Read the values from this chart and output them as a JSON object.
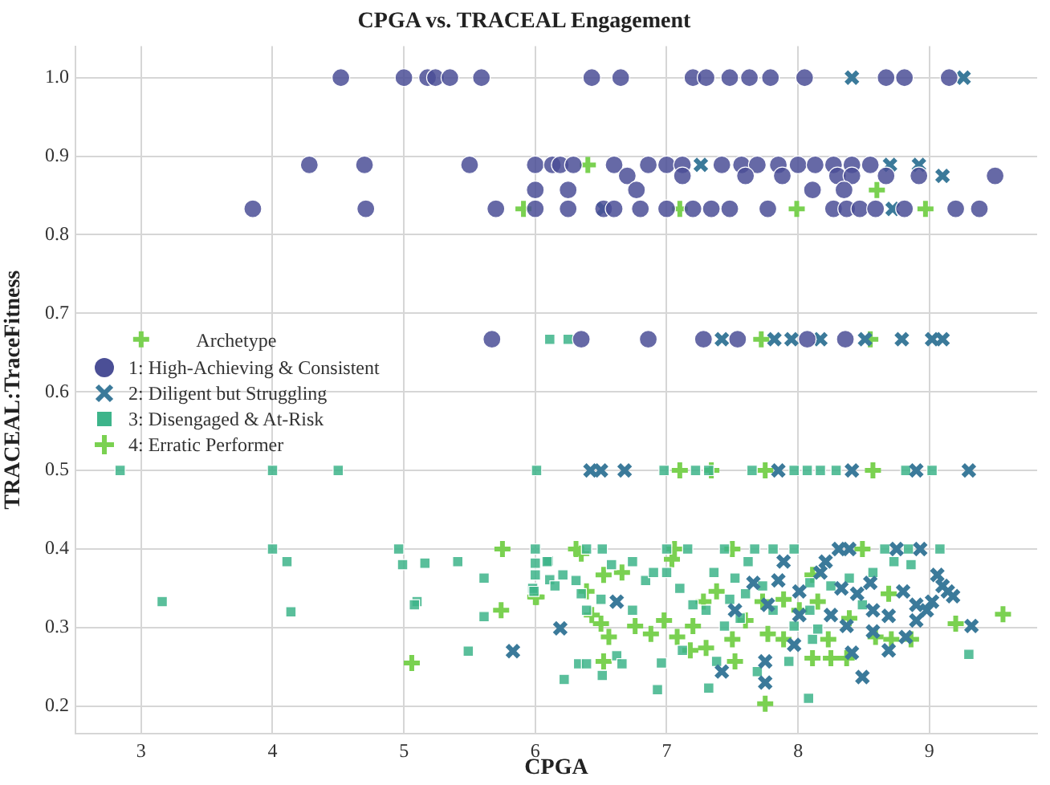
{
  "chart_data": {
    "type": "scatter",
    "title": "CPGA vs. TRACEAL Engagement",
    "xlabel": "CPGA",
    "ylabel": "TRACEAL:TraceFitness",
    "legend_title": "Archetype",
    "legend": "left",
    "grid": true,
    "xlim": [
      2.5,
      9.82
    ],
    "xticks": [
      3,
      4,
      5,
      6,
      7,
      8,
      9
    ],
    "ylim": [
      0.165,
      1.04
    ],
    "yticks": [
      {
        "value": 0.2,
        "label": "0.2"
      },
      {
        "value": 0.3,
        "label": "0.3"
      },
      {
        "value": 0.4,
        "label": "0.4"
      },
      {
        "value": 0.5,
        "label": "0.5"
      },
      {
        "value": 0.6,
        "label": "0.6"
      },
      {
        "value": 0.7,
        "label": "0.7"
      },
      {
        "value": 0.8,
        "label": "0.8"
      },
      {
        "value": 0.9,
        "label": "0.9"
      },
      {
        "value": 1.0,
        "label": "1.0"
      }
    ],
    "series": [
      {
        "name": "1: High-Achieving & Consistent",
        "color": "#4b4f96",
        "marker": "circle",
        "x": [
          4.52,
          5.0,
          5.18,
          5.24,
          5.35,
          5.59,
          6.43,
          6.65,
          7.2,
          7.3,
          7.48,
          7.63,
          7.79,
          8.05,
          8.67,
          8.81,
          9.15,
          4.28,
          4.7,
          5.5,
          6.0,
          6.13,
          6.19,
          6.29,
          6.6,
          6.86,
          7.0,
          7.12,
          7.42,
          7.57,
          7.69,
          7.85,
          8.0,
          8.13,
          8.27,
          8.41,
          8.55,
          6.7,
          7.12,
          7.6,
          7.88,
          8.3,
          8.41,
          8.67,
          8.92,
          9.5,
          6.0,
          6.25,
          6.77,
          8.11,
          8.35,
          3.85,
          4.71,
          5.7,
          6.0,
          6.25,
          6.52,
          6.6,
          6.8,
          7.0,
          7.2,
          7.34,
          7.48,
          7.77,
          8.27,
          8.37,
          8.47,
          8.59,
          8.81,
          9.2,
          9.38,
          5.67,
          6.35,
          6.86,
          7.28,
          7.54,
          8.07,
          8.36
        ],
        "values": [
          1.0,
          1.0,
          1.0,
          1.0,
          1.0,
          1.0,
          1.0,
          1.0,
          1.0,
          1.0,
          1.0,
          1.0,
          1.0,
          1.0,
          1.0,
          1.0,
          1.0,
          0.889,
          0.889,
          0.889,
          0.889,
          0.889,
          0.889,
          0.889,
          0.889,
          0.889,
          0.889,
          0.889,
          0.889,
          0.889,
          0.889,
          0.889,
          0.889,
          0.889,
          0.889,
          0.889,
          0.889,
          0.875,
          0.875,
          0.875,
          0.875,
          0.875,
          0.875,
          0.875,
          0.875,
          0.875,
          0.857,
          0.857,
          0.857,
          0.857,
          0.857,
          0.833,
          0.833,
          0.833,
          0.833,
          0.833,
          0.833,
          0.833,
          0.833,
          0.833,
          0.833,
          0.833,
          0.833,
          0.833,
          0.833,
          0.833,
          0.833,
          0.833,
          0.833,
          0.833,
          0.833,
          0.667,
          0.667,
          0.667,
          0.667,
          0.667,
          0.667,
          0.667
        ]
      },
      {
        "name": "2: Diligent but Struggling",
        "color": "#3b7a9a",
        "marker": "cross",
        "x": [
          8.41,
          9.26,
          7.26,
          8.7,
          8.92,
          9.1,
          6.52,
          8.72,
          7.42,
          7.82,
          7.95,
          8.17,
          8.51,
          8.79,
          9.02,
          9.1,
          6.42,
          6.5,
          6.68,
          7.85,
          8.41,
          8.9,
          9.3,
          8.31,
          8.39,
          8.75,
          8.93,
          5.83,
          6.19,
          6.62,
          7.42,
          7.75,
          7.75,
          8.49,
          7.89,
          7.85,
          7.66,
          8.01,
          8.21,
          8.33,
          8.45,
          8.55,
          8.57,
          8.69,
          8.69,
          8.8,
          8.9,
          8.98,
          9.06,
          9.1,
          9.14,
          9.02,
          9.18,
          9.32,
          8.82,
          8.37,
          8.25,
          8.01,
          7.77,
          7.52,
          7.97,
          8.41,
          8.57,
          8.9,
          8.17
        ],
        "values": [
          1.0,
          1.0,
          0.889,
          0.889,
          0.889,
          0.875,
          0.833,
          0.833,
          0.667,
          0.667,
          0.667,
          0.667,
          0.667,
          0.667,
          0.667,
          0.667,
          0.5,
          0.5,
          0.5,
          0.5,
          0.5,
          0.5,
          0.5,
          0.4,
          0.4,
          0.4,
          0.4,
          0.27,
          0.299,
          0.333,
          0.244,
          0.257,
          0.23,
          0.237,
          0.384,
          0.36,
          0.357,
          0.346,
          0.384,
          0.35,
          0.343,
          0.357,
          0.322,
          0.315,
          0.271,
          0.346,
          0.329,
          0.322,
          0.367,
          0.353,
          0.346,
          0.333,
          0.34,
          0.302,
          0.288,
          0.302,
          0.316,
          0.316,
          0.329,
          0.322,
          0.278,
          0.268,
          0.295,
          0.309,
          0.37
        ]
      },
      {
        "name": "3: Disengaged & At-Risk",
        "color": "#3db48a",
        "marker": "square",
        "x": [
          6.11,
          6.25,
          2.84,
          4.0,
          4.5,
          6.01,
          6.98,
          7.22,
          7.32,
          7.65,
          7.97,
          8.07,
          8.17,
          8.29,
          8.82,
          9.02,
          4.0,
          4.96,
          6.0,
          6.39,
          6.51,
          7.0,
          7.16,
          7.44,
          7.67,
          7.81,
          7.97,
          8.66,
          8.84,
          9.08,
          4.99,
          5.16,
          5.41,
          4.11,
          4.14,
          3.16,
          5.1,
          5.08,
          5.61,
          5.61,
          5.49,
          6.0,
          6.0,
          5.98,
          6.1,
          6.11,
          6.09,
          5.99,
          6.15,
          6.21,
          6.31,
          6.35,
          6.39,
          6.5,
          6.58,
          6.74,
          6.74,
          6.84,
          6.9,
          7.0,
          7.1,
          7.2,
          7.36,
          7.3,
          7.48,
          7.52,
          7.62,
          7.73,
          7.6,
          7.44,
          7.81,
          7.97,
          8.11,
          8.09,
          8.25,
          8.39,
          8.57,
          8.73,
          8.86,
          8.49,
          8.09,
          8.15,
          6.33,
          6.39,
          6.62,
          6.66,
          6.22,
          6.51,
          6.93,
          6.96,
          7.32,
          7.69,
          7.38,
          8.08,
          7.93,
          9.3,
          7.56,
          7.12
        ],
        "values": [
          0.667,
          0.667,
          0.5,
          0.5,
          0.5,
          0.5,
          0.5,
          0.5,
          0.5,
          0.5,
          0.5,
          0.5,
          0.5,
          0.5,
          0.5,
          0.5,
          0.4,
          0.4,
          0.4,
          0.4,
          0.4,
          0.4,
          0.4,
          0.4,
          0.4,
          0.4,
          0.4,
          0.4,
          0.4,
          0.4,
          0.38,
          0.382,
          0.384,
          0.384,
          0.32,
          0.333,
          0.333,
          0.329,
          0.363,
          0.314,
          0.27,
          0.382,
          0.367,
          0.35,
          0.385,
          0.361,
          0.384,
          0.346,
          0.353,
          0.367,
          0.36,
          0.343,
          0.322,
          0.336,
          0.38,
          0.384,
          0.322,
          0.36,
          0.37,
          0.37,
          0.35,
          0.329,
          0.37,
          0.322,
          0.336,
          0.363,
          0.384,
          0.353,
          0.343,
          0.302,
          0.322,
          0.302,
          0.285,
          0.357,
          0.353,
          0.363,
          0.37,
          0.384,
          0.38,
          0.329,
          0.322,
          0.298,
          0.254,
          0.254,
          0.264,
          0.254,
          0.234,
          0.239,
          0.221,
          0.255,
          0.223,
          0.244,
          0.257,
          0.21,
          0.257,
          0.266,
          0.312,
          0.271
        ]
      },
      {
        "name": "4: Erratic Performer",
        "color": "#7ad151",
        "marker": "plus",
        "x": [
          3.0,
          6.4,
          5.91,
          7.1,
          7.99,
          8.97,
          8.6,
          7.72,
          8.55,
          7.1,
          7.34,
          7.75,
          8.57,
          5.75,
          6.31,
          7.06,
          7.5,
          8.49,
          5.06,
          5.74,
          6.0,
          6.35,
          6.39,
          6.01,
          6.43,
          6.5,
          6.52,
          6.56,
          6.66,
          6.76,
          6.88,
          6.98,
          7.04,
          7.08,
          7.18,
          7.2,
          7.28,
          7.3,
          7.5,
          7.6,
          7.73,
          7.77,
          7.89,
          7.89,
          8.01,
          8.11,
          8.15,
          8.23,
          8.25,
          8.37,
          8.11,
          8.39,
          8.59,
          8.69,
          8.71,
          8.86,
          9.2,
          9.56,
          7.75,
          6.52,
          7.52,
          7.38
        ],
        "values": [
          0.667,
          0.889,
          0.833,
          0.833,
          0.833,
          0.833,
          0.857,
          0.667,
          0.667,
          0.5,
          0.5,
          0.5,
          0.5,
          0.4,
          0.4,
          0.4,
          0.4,
          0.4,
          0.255,
          0.322,
          0.339,
          0.394,
          0.346,
          0.339,
          0.316,
          0.305,
          0.367,
          0.288,
          0.37,
          0.302,
          0.292,
          0.309,
          0.387,
          0.288,
          0.271,
          0.302,
          0.333,
          0.274,
          0.285,
          0.309,
          0.333,
          0.292,
          0.285,
          0.336,
          0.322,
          0.367,
          0.333,
          0.285,
          0.261,
          0.261,
          0.261,
          0.312,
          0.288,
          0.343,
          0.285,
          0.285,
          0.305,
          0.317,
          0.203,
          0.257,
          0.257,
          0.346
        ]
      }
    ]
  }
}
